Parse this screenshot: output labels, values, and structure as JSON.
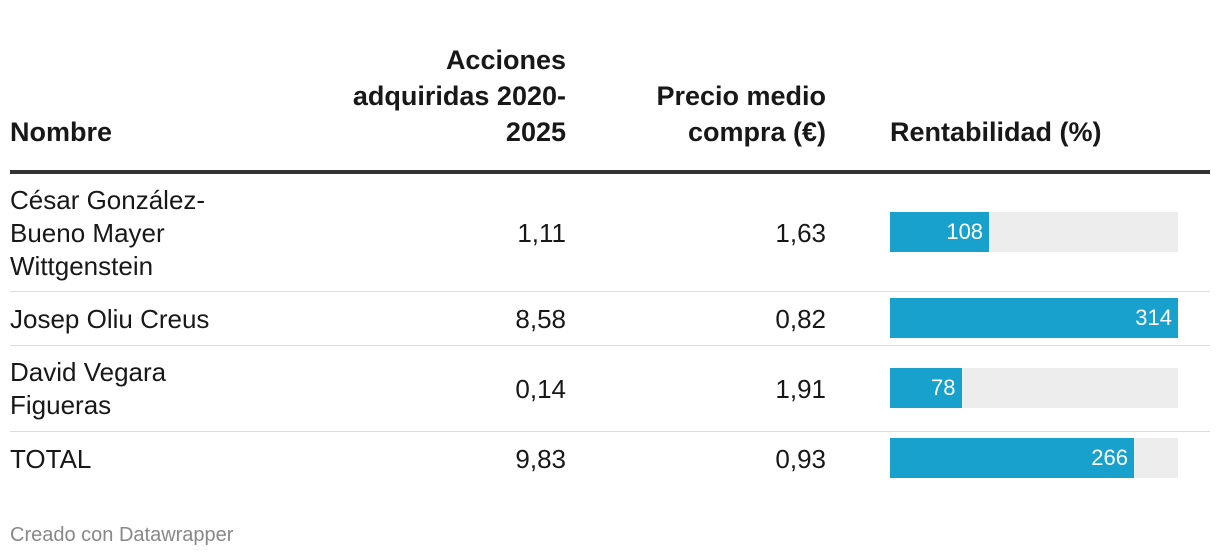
{
  "table": {
    "headers": {
      "name": "Nombre",
      "shares": "Acciones adquiridas 2020-2025",
      "price": "Precio medio compra (€)",
      "rent": "Rentabilidad (%)"
    }
  },
  "chart_data": {
    "type": "bar",
    "title": "",
    "xlabel": "",
    "ylabel": "Rentabilidad (%)",
    "categories": [
      "César González-Bueno Mayer Wittgenstein",
      "Josep Oliu Creus",
      "David Vegara Figueras",
      "TOTAL"
    ],
    "rows": [
      {
        "name": "César González-Bueno Mayer Wittgenstein",
        "shares": "1,11",
        "price": "1,63",
        "rent": 108
      },
      {
        "name": "Josep Oliu Creus",
        "shares": "8,58",
        "price": "0,82",
        "rent": 314
      },
      {
        "name": "David Vegara Figueras",
        "shares": "0,14",
        "price": "1,91",
        "rent": 78
      },
      {
        "name": "TOTAL",
        "shares": "9,83",
        "price": "0,93",
        "rent": 266
      }
    ],
    "values": [
      108,
      314,
      78,
      266
    ],
    "ylim": [
      0,
      314
    ],
    "bar_color": "#18a1cd",
    "track_color": "#ededed"
  },
  "footer": {
    "credit": "Creado con Datawrapper"
  }
}
